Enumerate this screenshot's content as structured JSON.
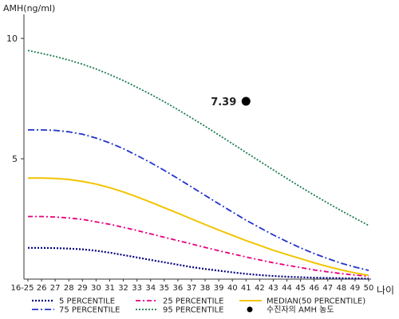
{
  "chart_data": {
    "type": "line",
    "ylabel": "AMH(ng/ml)",
    "xlabel": "나이",
    "ylim": [
      0,
      11
    ],
    "yticks": [
      5,
      10
    ],
    "grid": false,
    "legend_position": "bottom",
    "categories": [
      "16-25",
      "26",
      "27",
      "28",
      "29",
      "30",
      "31",
      "32",
      "33",
      "34",
      "35",
      "36",
      "37",
      "38",
      "39",
      "40",
      "41",
      "42",
      "43",
      "44",
      "45",
      "46",
      "47",
      "48",
      "49",
      "50"
    ],
    "series": [
      {
        "name": "5 PERCENTILE",
        "color": "#000080",
        "dash": "2,2",
        "width": 2.2,
        "values": [
          1.3,
          1.3,
          1.29,
          1.27,
          1.24,
          1.18,
          1.1,
          1.0,
          0.9,
          0.8,
          0.7,
          0.6,
          0.5,
          0.42,
          0.35,
          0.28,
          0.22,
          0.17,
          0.13,
          0.1,
          0.08,
          0.06,
          0.05,
          0.04,
          0.03,
          0.02
        ]
      },
      {
        "name": "25 PERCENTILE",
        "color": "#e6007e",
        "dash": "6,3,2,3",
        "width": 1.8,
        "values": [
          2.6,
          2.6,
          2.58,
          2.54,
          2.48,
          2.38,
          2.28,
          2.15,
          2.02,
          1.88,
          1.74,
          1.6,
          1.46,
          1.32,
          1.18,
          1.05,
          0.92,
          0.8,
          0.68,
          0.58,
          0.48,
          0.38,
          0.3,
          0.23,
          0.17,
          0.12
        ]
      },
      {
        "name": "MEDIAN(50 PERCENTILE)",
        "color": "#f2c400",
        "dash": "",
        "width": 2,
        "values": [
          4.2,
          4.2,
          4.18,
          4.14,
          4.06,
          3.95,
          3.8,
          3.62,
          3.42,
          3.2,
          2.97,
          2.74,
          2.5,
          2.27,
          2.04,
          1.82,
          1.6,
          1.4,
          1.2,
          1.02,
          0.85,
          0.68,
          0.52,
          0.38,
          0.26,
          0.16
        ]
      },
      {
        "name": "75 PERCENTILE",
        "color": "#2233cc",
        "dash": "8,3,2,3",
        "width": 1.8,
        "values": [
          6.2,
          6.2,
          6.18,
          6.12,
          6.02,
          5.86,
          5.66,
          5.42,
          5.14,
          4.84,
          4.52,
          4.18,
          3.83,
          3.48,
          3.13,
          2.79,
          2.45,
          2.14,
          1.84,
          1.56,
          1.3,
          1.06,
          0.85,
          0.66,
          0.5,
          0.36
        ]
      },
      {
        "name": "95 PERCENTILE",
        "color": "#1a7a4c",
        "dash": "2,2",
        "width": 1.8,
        "values": [
          9.5,
          9.38,
          9.25,
          9.1,
          8.93,
          8.73,
          8.5,
          8.25,
          7.97,
          7.68,
          7.37,
          7.04,
          6.7,
          6.35,
          5.99,
          5.63,
          5.26,
          4.9,
          4.54,
          4.18,
          3.83,
          3.49,
          3.16,
          2.84,
          2.53,
          2.23
        ]
      }
    ],
    "marker": {
      "name": "수진자의 AMH 농도",
      "x": "41",
      "y": 7.39,
      "label": "7.39",
      "color": "#000000"
    }
  }
}
